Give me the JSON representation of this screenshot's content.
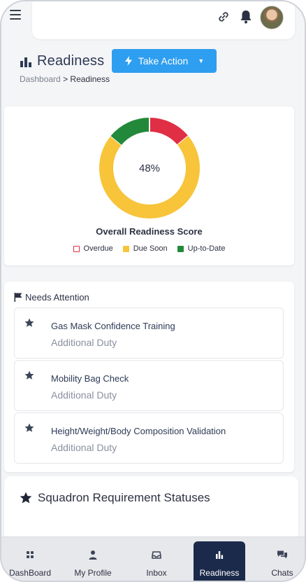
{
  "header": {
    "title": "Readiness",
    "take_action_label": "Take Action",
    "breadcrumb": {
      "root": "Dashboard",
      "current": "> Readiness"
    }
  },
  "score": {
    "center_label": "48%",
    "title": "Overall Readiness Score",
    "legend": [
      {
        "label": "Overdue",
        "color": "#e02f44",
        "style": "outline"
      },
      {
        "label": "Due Soon",
        "color": "#f7c43a",
        "style": "filled"
      },
      {
        "label": "Up-to-Date",
        "color": "#23893a",
        "style": "filled"
      }
    ]
  },
  "chart_data": {
    "type": "pie",
    "variant": "donut",
    "categories": [
      "Overdue",
      "Due Soon",
      "Up-to-Date"
    ],
    "values": [
      14,
      72,
      14
    ],
    "colors": [
      "#e02f44",
      "#f7c43a",
      "#23893a"
    ],
    "center_label": "48%",
    "title": "Overall Readiness Score",
    "legend_position": "bottom"
  },
  "attention": {
    "title": "Needs Attention",
    "items": [
      {
        "title": "Gas Mask Confidence Training",
        "subtitle": "Additional Duty"
      },
      {
        "title": "Mobility Bag Check",
        "subtitle": "Additional Duty"
      },
      {
        "title": "Height/Weight/Body Composition Validation",
        "subtitle": "Additional Duty"
      }
    ]
  },
  "squadron": {
    "title": "Squadron Requirement Statuses"
  },
  "nav": {
    "items": [
      {
        "label": "DashBoard",
        "icon": "grid-icon"
      },
      {
        "label": "My Profile",
        "icon": "user-icon"
      },
      {
        "label": "Inbox",
        "icon": "inbox-icon"
      },
      {
        "label": "Readiness",
        "icon": "bar-chart-icon",
        "active": true
      },
      {
        "label": "Chats",
        "icon": "chat-icon"
      }
    ]
  },
  "colors": {
    "accent": "#2e9ef0",
    "nav_active": "#1b2a4a",
    "title": "#2d3a55"
  }
}
